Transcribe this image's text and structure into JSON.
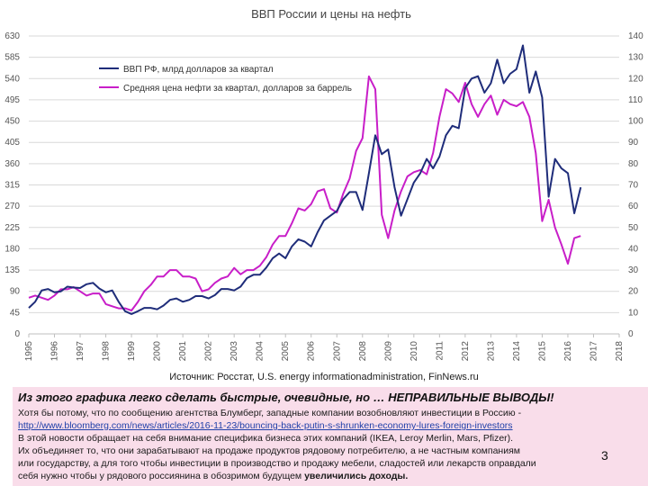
{
  "chart_data": {
    "type": "line",
    "title": "ВВП России и цены на нефть",
    "x_ticks": [
      "1995",
      "1996",
      "1997",
      "1998",
      "1999",
      "2000",
      "2001",
      "2002",
      "2003",
      "2004",
      "2005",
      "2006",
      "2007",
      "2008",
      "2009",
      "2010",
      "2011",
      "2012",
      "2013",
      "2014",
      "2015",
      "2016",
      "2017",
      "2018"
    ],
    "x_range": [
      1995,
      2018
    ],
    "y_left_ticks": [
      "0",
      "45",
      "90",
      "135",
      "180",
      "225",
      "270",
      "315",
      "360",
      "405",
      "450",
      "495",
      "540",
      "585",
      "630"
    ],
    "y_left_range": [
      0,
      630
    ],
    "y_right_ticks": [
      "0",
      "10",
      "20",
      "30",
      "40",
      "50",
      "60",
      "70",
      "80",
      "90",
      "100",
      "110",
      "120",
      "130",
      "140"
    ],
    "y_right_range": [
      0,
      140
    ],
    "legend": "top-left",
    "source": "Источник: Росстат, U.S. energy informationadministration, FinNews.ru",
    "series": [
      {
        "name": "ВВП РФ, млрд долларов за квартал",
        "axis": "left",
        "color": "#1f2d7a",
        "x": [
          1995.0,
          1995.25,
          1995.5,
          1995.75,
          1996.0,
          1996.25,
          1996.5,
          1996.75,
          1997.0,
          1997.25,
          1997.5,
          1997.75,
          1998.0,
          1998.25,
          1998.5,
          1998.75,
          1999.0,
          1999.25,
          1999.5,
          1999.75,
          2000.0,
          2000.25,
          2000.5,
          2000.75,
          2001.0,
          2001.25,
          2001.5,
          2001.75,
          2002.0,
          2002.25,
          2002.5,
          2002.75,
          2003.0,
          2003.25,
          2003.5,
          2003.75,
          2004.0,
          2004.25,
          2004.5,
          2004.75,
          2005.0,
          2005.25,
          2005.5,
          2005.75,
          2006.0,
          2006.25,
          2006.5,
          2006.75,
          2007.0,
          2007.25,
          2007.5,
          2007.75,
          2008.0,
          2008.25,
          2008.5,
          2008.75,
          2009.0,
          2009.25,
          2009.5,
          2009.75,
          2010.0,
          2010.25,
          2010.5,
          2010.75,
          2011.0,
          2011.25,
          2011.5,
          2011.75,
          2012.0,
          2012.25,
          2012.5,
          2012.75,
          2013.0,
          2013.25,
          2013.5,
          2013.75,
          2014.0,
          2014.25,
          2014.5,
          2014.75,
          2015.0,
          2015.25,
          2015.5,
          2015.75,
          2016.0,
          2016.25,
          2016.5
        ],
        "values": [
          55,
          68,
          92,
          95,
          88,
          90,
          100,
          98,
          97,
          105,
          108,
          96,
          88,
          92,
          68,
          48,
          42,
          48,
          55,
          55,
          52,
          60,
          72,
          75,
          68,
          72,
          80,
          80,
          75,
          82,
          95,
          95,
          92,
          100,
          118,
          125,
          125,
          140,
          160,
          170,
          160,
          185,
          200,
          195,
          185,
          215,
          240,
          250,
          260,
          285,
          300,
          300,
          262,
          340,
          420,
          380,
          390,
          310,
          250,
          285,
          320,
          340,
          370,
          350,
          375,
          420,
          440,
          435,
          520,
          540,
          545,
          510,
          530,
          580,
          530,
          550,
          560,
          610,
          510,
          555,
          500,
          290,
          370,
          350,
          340,
          255,
          310
        ]
      },
      {
        "name": "Средняя цена нефти за квартал, долларов за баррель",
        "axis": "right",
        "color": "#c81ec8",
        "x": [
          1995.0,
          1995.25,
          1995.5,
          1995.75,
          1996.0,
          1996.25,
          1996.5,
          1996.75,
          1997.0,
          1997.25,
          1997.5,
          1997.75,
          1998.0,
          1998.25,
          1998.5,
          1998.75,
          1999.0,
          1999.25,
          1999.5,
          1999.75,
          2000.0,
          2000.25,
          2000.5,
          2000.75,
          2001.0,
          2001.25,
          2001.5,
          2001.75,
          2002.0,
          2002.25,
          2002.5,
          2002.75,
          2003.0,
          2003.25,
          2003.5,
          2003.75,
          2004.0,
          2004.25,
          2004.5,
          2004.75,
          2005.0,
          2005.25,
          2005.5,
          2005.75,
          2006.0,
          2006.25,
          2006.5,
          2006.75,
          2007.0,
          2007.25,
          2007.5,
          2007.75,
          2008.0,
          2008.25,
          2008.5,
          2008.75,
          2009.0,
          2009.25,
          2009.5,
          2009.75,
          2010.0,
          2010.25,
          2010.5,
          2010.75,
          2011.0,
          2011.25,
          2011.5,
          2011.75,
          2012.0,
          2012.25,
          2012.5,
          2012.75,
          2013.0,
          2013.25,
          2013.5,
          2013.75,
          2014.0,
          2014.25,
          2014.5,
          2014.75,
          2015.0,
          2015.25,
          2015.5,
          2015.75,
          2016.0,
          2016.25,
          2016.5
        ],
        "values": [
          17,
          18,
          17,
          16,
          18,
          21,
          21,
          22,
          20,
          18,
          19,
          19,
          14,
          13,
          12,
          12,
          11,
          15,
          20,
          23,
          27,
          27,
          30,
          30,
          27,
          27,
          26,
          20,
          21,
          24,
          26,
          27,
          31,
          28,
          30,
          30,
          32,
          36,
          42,
          46,
          46,
          52,
          59,
          58,
          61,
          67,
          68,
          59,
          57,
          66,
          73,
          86,
          92,
          121,
          115,
          56,
          45,
          58,
          67,
          74,
          76,
          77,
          75,
          85,
          102,
          115,
          113,
          109,
          118,
          108,
          102,
          108,
          112,
          103,
          110,
          108,
          107,
          109,
          102,
          85,
          53,
          63,
          50,
          42,
          33,
          45,
          46
        ]
      }
    ]
  },
  "note": {
    "heading": "Из этого графика легко сделать быстрые, очевидные, но … НЕПРАВИЛЬНЫЕ ВЫВОДЫ!",
    "line1": "Хотя бы потому, что по сообщению агентства Блумберг, западные компании возобновляют инвестиции в Россию -",
    "link": "http://www.bloomberg.com/news/articles/2016-11-23/bouncing-back-putin-s-shrunken-economy-lures-foreign-investors",
    "line3": "В этой новости обращает на себя внимание специфика бизнеса этих компаний (IKEA, Leroy Merlin, Mars, Pfizer).",
    "line4": "Их объединяет то, что они зарабатывают на продаже продуктов рядовому потребителю, а не частным компаниям",
    "line5": "или государству, а для того чтобы инвестиции в производство и продажу мебели, сладостей или лекарств оправдали",
    "line6_start": "себя нужно чтобы у рядового россиянина в обозримом будущем ",
    "line6_bold": "увеличились доходы."
  },
  "page_number": "3"
}
